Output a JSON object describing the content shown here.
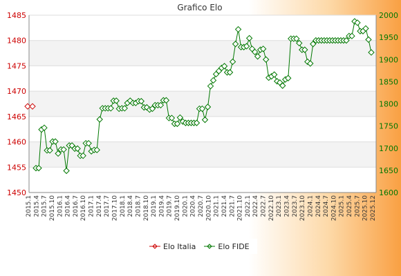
{
  "chart_data": {
    "type": "line",
    "title": "Grafico Elo",
    "left_axis": {
      "ylim": [
        1450,
        1485
      ],
      "ticks": [
        1450,
        1455,
        1460,
        1465,
        1470,
        1475,
        1480,
        1485
      ],
      "color": "#cc0000"
    },
    "right_axis": {
      "ylim": [
        1600,
        2000
      ],
      "ticks": [
        1600,
        1650,
        1700,
        1750,
        1800,
        1850,
        1900,
        1950,
        2000
      ],
      "color": "#007700"
    },
    "grid": true,
    "legend_position": "bottom-center",
    "x_tick_labels": [
      "2015.1",
      "2015.4",
      "2015.7",
      "2015.10",
      "2016.1",
      "2016.4",
      "2016.7",
      "2016.10",
      "2017.1",
      "2017.4",
      "2017.7",
      "2017.10",
      "2018.1",
      "2018.4",
      "2018.7",
      "2018.10",
      "2019.1",
      "2019.4",
      "2019.7",
      "2019.10",
      "2020.1",
      "2020.4",
      "2020.7",
      "2020.10",
      "2021.1",
      "2021.4",
      "2021.7",
      "2021.10",
      "2022.1",
      "2022.4",
      "2022.7",
      "2022.10",
      "2023.1",
      "2023.4",
      "2023.7",
      "2023.10",
      "2024.1",
      "2024.4",
      "2024.7",
      "2024.10",
      "2025.1",
      "2025.4",
      "2025.7",
      "2025.10",
      "2025.12"
    ],
    "series": [
      {
        "name": "Elo Italia",
        "axis": "left",
        "color": "#cc0000",
        "values": [
          1467,
          1467
        ]
      },
      {
        "name": "Elo FIDE",
        "axis": "right",
        "color": "#007700",
        "values": [
          1655,
          1655,
          1742,
          1746,
          1695,
          1695,
          1715,
          1715,
          1688,
          1697,
          1697,
          1649,
          1706,
          1706,
          1699,
          1699,
          1683,
          1683,
          1711,
          1711,
          1693,
          1696,
          1696,
          1765,
          1790,
          1790,
          1790,
          1790,
          1807,
          1807,
          1789,
          1790,
          1790,
          1802,
          1807,
          1802,
          1802,
          1806,
          1806,
          1792,
          1792,
          1787,
          1789,
          1797,
          1797,
          1797,
          1808,
          1808,
          1768,
          1768,
          1755,
          1755,
          1769,
          1760,
          1757,
          1757,
          1757,
          1757,
          1757,
          1789,
          1789,
          1764,
          1793,
          1840,
          1853,
          1867,
          1874,
          1881,
          1885,
          1871,
          1871,
          1895,
          1935,
          1968,
          1928,
          1928,
          1930,
          1948,
          1924,
          1917,
          1907,
          1922,
          1924,
          1900,
          1859,
          1862,
          1866,
          1851,
          1848,
          1841,
          1855,
          1858,
          1947,
          1947,
          1947,
          1937,
          1922,
          1922,
          1895,
          1891,
          1935,
          1943,
          1943,
          1943,
          1943,
          1943,
          1943,
          1943,
          1943,
          1943,
          1943,
          1943,
          1943,
          1953,
          1953,
          1986,
          1983,
          1964,
          1964,
          1970,
          1945,
          1916
        ]
      }
    ]
  }
}
